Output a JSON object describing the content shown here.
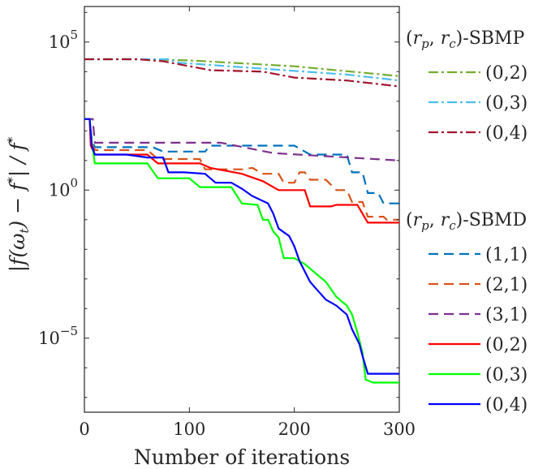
{
  "chart_data": {
    "type": "line",
    "xlabel": "Number of iterations",
    "ylabel": "|f(ω_t) − f*| / f*",
    "yscale": "log",
    "xlim": [
      0,
      300
    ],
    "ylim_log10": [
      -7.5,
      6.2
    ],
    "x_ticks": [
      {
        "value": 0,
        "label": "0"
      },
      {
        "value": 100,
        "label": "100"
      },
      {
        "value": 200,
        "label": "200"
      },
      {
        "value": 300,
        "label": "300"
      }
    ],
    "y_ticks": [
      {
        "log10": 5,
        "base": "10",
        "exp": "5"
      },
      {
        "log10": 0,
        "base": "10",
        "exp": "0",
        "label": "10"
      },
      {
        "log10": -5,
        "base": "10",
        "exp": "−5"
      }
    ],
    "legend_groups": [
      {
        "title": "(r_p, r_c)-SBMP",
        "title_parts": {
          "open": "(",
          "r1": "r",
          "s1": "p",
          "comma": ", ",
          "r2": "r",
          "s2": "c",
          "close": ")-SBMP"
        },
        "series": [
          {
            "name": "(0,2)",
            "color": "#77AC30",
            "dash": "12,4,3,4",
            "width": 2.2,
            "points": [
              [
                0,
                4.42
              ],
              [
                40,
                4.42
              ],
              [
                100,
                4.38
              ],
              [
                200,
                4.18
              ],
              [
                300,
                3.85
              ]
            ]
          },
          {
            "name": "(0,3)",
            "color": "#4DBEEE",
            "dash": "12,4,3,4",
            "width": 2.2,
            "points": [
              [
                0,
                4.42
              ],
              [
                80,
                4.42
              ],
              [
                90,
                4.3
              ],
              [
                150,
                4.15
              ],
              [
                250,
                3.9
              ],
              [
                300,
                3.7
              ]
            ]
          },
          {
            "name": "(0,4)",
            "color": "#A2142F",
            "dash": "12,4,3,4",
            "width": 2.2,
            "points": [
              [
                0,
                4.42
              ],
              [
                50,
                4.42
              ],
              [
                75,
                4.35
              ],
              [
                120,
                4.05
              ],
              [
                170,
                4.0
              ],
              [
                200,
                3.8
              ],
              [
                250,
                3.7
              ],
              [
                300,
                3.5
              ]
            ]
          }
        ]
      },
      {
        "title": "(r_p, r_c)-SBMD",
        "title_parts": {
          "open": "(",
          "r1": "r",
          "s1": "p",
          "comma": ", ",
          "r2": "r",
          "s2": "c",
          "close": ")-SBMD"
        },
        "series": [
          {
            "name": "(1,1)",
            "color": "#0072BD",
            "dash": "12,7",
            "width": 2.2,
            "points": [
              [
                0,
                2.4
              ],
              [
                5,
                2.4
              ],
              [
                7,
                1.7
              ],
              [
                10,
                1.45
              ],
              [
                65,
                1.45
              ],
              [
                75,
                1.3
              ],
              [
                115,
                1.3
              ],
              [
                120,
                1.5
              ],
              [
                200,
                1.5
              ],
              [
                215,
                1.2
              ],
              [
                250,
                1.2
              ],
              [
                255,
                0.6
              ],
              [
                265,
                0.6
              ],
              [
                270,
                -0.1
              ],
              [
                280,
                -0.1
              ],
              [
                285,
                -0.45
              ],
              [
                300,
                -0.45
              ]
            ]
          },
          {
            "name": "(2,1)",
            "color": "#D95319",
            "dash": "12,7",
            "width": 2.2,
            "points": [
              [
                0,
                2.4
              ],
              [
                5,
                2.4
              ],
              [
                7,
                1.6
              ],
              [
                10,
                1.35
              ],
              [
                60,
                1.35
              ],
              [
                70,
                1.05
              ],
              [
                110,
                1.05
              ],
              [
                115,
                0.7
              ],
              [
                150,
                0.7
              ],
              [
                160,
                0.75
              ],
              [
                170,
                0.55
              ],
              [
                185,
                0.55
              ],
              [
                190,
                0.25
              ],
              [
                200,
                0.25
              ],
              [
                205,
                0.6
              ],
              [
                210,
                0.6
              ],
              [
                215,
                0.35
              ],
              [
                230,
                0.35
              ],
              [
                240,
                0.0
              ],
              [
                250,
                0.0
              ],
              [
                255,
                -0.4
              ],
              [
                265,
                -0.4
              ],
              [
                270,
                -0.9
              ],
              [
                285,
                -0.9
              ],
              [
                288,
                -1.0
              ],
              [
                300,
                -1.0
              ]
            ]
          },
          {
            "name": "(3,1)",
            "color": "#7E2F8E",
            "dash": "12,7",
            "width": 2.2,
            "points": [
              [
                0,
                2.4
              ],
              [
                8,
                2.4
              ],
              [
                10,
                1.6
              ],
              [
                130,
                1.6
              ],
              [
                180,
                1.25
              ],
              [
                300,
                1.0
              ]
            ]
          },
          {
            "name": "(0,2)",
            "color": "#FF0000",
            "dash": "",
            "width": 2.2,
            "points": [
              [
                0,
                2.4
              ],
              [
                5,
                2.4
              ],
              [
                6,
                1.5
              ],
              [
                8,
                1.35
              ],
              [
                10,
                1.2
              ],
              [
                60,
                1.2
              ],
              [
                70,
                0.9
              ],
              [
                110,
                0.9
              ],
              [
                120,
                0.75
              ],
              [
                150,
                0.55
              ],
              [
                170,
                0.3
              ],
              [
                185,
                0.0
              ],
              [
                210,
                0.0
              ],
              [
                215,
                -0.55
              ],
              [
                235,
                -0.55
              ],
              [
                240,
                -0.5
              ],
              [
                260,
                -0.5
              ],
              [
                270,
                -1.1
              ],
              [
                300,
                -1.1
              ]
            ]
          },
          {
            "name": "(0,3)",
            "color": "#00FF00",
            "dash": "",
            "width": 2.2,
            "points": [
              [
                0,
                2.4
              ],
              [
                5,
                2.4
              ],
              [
                7,
                1.6
              ],
              [
                10,
                0.9
              ],
              [
                15,
                0.9
              ],
              [
                60,
                0.9
              ],
              [
                70,
                0.4
              ],
              [
                100,
                0.4
              ],
              [
                110,
                0.1
              ],
              [
                140,
                0.1
              ],
              [
                150,
                -0.45
              ],
              [
                165,
                -0.5
              ],
              [
                170,
                -1.0
              ],
              [
                175,
                -1.0
              ],
              [
                180,
                -1.4
              ],
              [
                185,
                -1.6
              ],
              [
                190,
                -2.3
              ],
              [
                200,
                -2.3
              ],
              [
                210,
                -2.5
              ],
              [
                220,
                -2.8
              ],
              [
                230,
                -3.1
              ],
              [
                240,
                -3.6
              ],
              [
                250,
                -3.9
              ],
              [
                255,
                -4.2
              ],
              [
                260,
                -4.8
              ],
              [
                265,
                -5.5
              ],
              [
                268,
                -6.4
              ],
              [
                275,
                -6.5
              ],
              [
                300,
                -6.5
              ]
            ]
          },
          {
            "name": "(0,4)",
            "color": "#0000FF",
            "dash": "",
            "width": 2.2,
            "points": [
              [
                0,
                2.4
              ],
              [
                5,
                2.4
              ],
              [
                7,
                1.5
              ],
              [
                10,
                1.2
              ],
              [
                40,
                1.2
              ],
              [
                60,
                1.1
              ],
              [
                75,
                1.1
              ],
              [
                80,
                0.6
              ],
              [
                95,
                0.6
              ],
              [
                115,
                0.55
              ],
              [
                125,
                0.25
              ],
              [
                140,
                0.25
              ],
              [
                150,
                0.05
              ],
              [
                160,
                -0.2
              ],
              [
                175,
                -0.45
              ],
              [
                180,
                -0.8
              ],
              [
                185,
                -1.3
              ],
              [
                195,
                -1.55
              ],
              [
                200,
                -1.9
              ],
              [
                205,
                -2.4
              ],
              [
                215,
                -3.1
              ],
              [
                220,
                -3.3
              ],
              [
                230,
                -3.7
              ],
              [
                240,
                -3.9
              ],
              [
                250,
                -4.2
              ],
              [
                255,
                -4.7
              ],
              [
                262,
                -5.2
              ],
              [
                265,
                -5.6
              ],
              [
                270,
                -6.2
              ],
              [
                275,
                -6.2
              ],
              [
                300,
                -6.2
              ]
            ]
          }
        ]
      }
    ]
  }
}
